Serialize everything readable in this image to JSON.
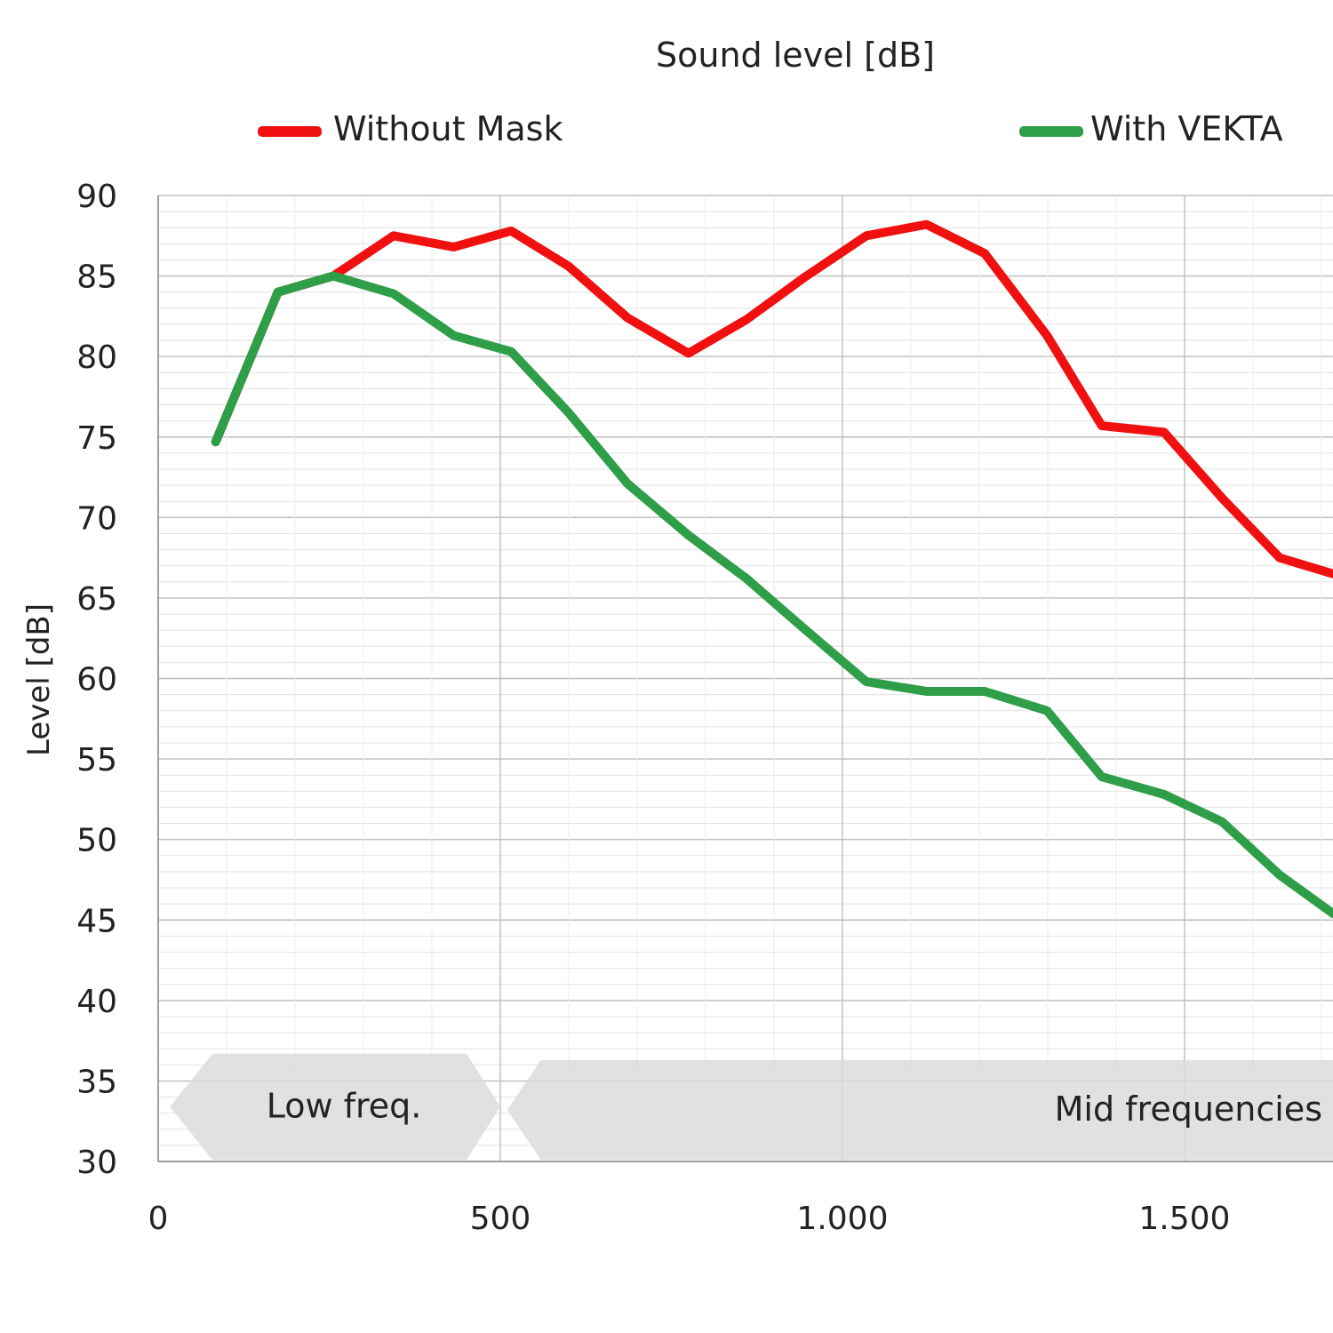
{
  "chart_data": {
    "type": "line",
    "title": "Sound level [dB]",
    "xlabel": "",
    "ylabel": "Level [dB]",
    "xlim": [
      0,
      1717
    ],
    "ylim": [
      30,
      90
    ],
    "xticks": [
      0,
      500,
      1000,
      1500
    ],
    "xtick_labels": [
      "0",
      "500",
      "1.000",
      "1.500"
    ],
    "yticks": [
      90,
      85,
      80,
      75,
      70,
      65,
      60,
      55,
      50,
      45,
      40,
      35,
      30
    ],
    "grid": true,
    "legend_position": "top",
    "x": [
      84,
      175,
      256,
      344,
      432,
      516,
      600,
      686,
      775,
      860,
      944,
      1035,
      1123,
      1208,
      1299,
      1379,
      1470,
      1555,
      1639,
      1717
    ],
    "series": [
      {
        "name": "Without Mask",
        "color": "#f01010",
        "values": [
          74.7,
          84.0,
          85.0,
          87.5,
          86.8,
          87.8,
          85.6,
          82.4,
          80.2,
          82.3,
          84.9,
          87.5,
          88.2,
          86.4,
          81.3,
          75.7,
          75.3,
          71.2,
          67.5,
          66.5
        ]
      },
      {
        "name": "With VEKTA",
        "color": "#2e9e48",
        "values": [
          74.7,
          84.0,
          85.0,
          83.9,
          81.3,
          80.3,
          76.5,
          72.1,
          68.9,
          66.2,
          63.1,
          59.8,
          59.2,
          59.2,
          58.0,
          53.9,
          52.8,
          51.1,
          47.8,
          45.4
        ]
      }
    ],
    "annotations": [
      {
        "text": "Low freq.",
        "x_range": [
          30,
          500
        ]
      },
      {
        "text": "Mid frequencies",
        "x_range": [
          510,
          1717
        ]
      }
    ]
  }
}
